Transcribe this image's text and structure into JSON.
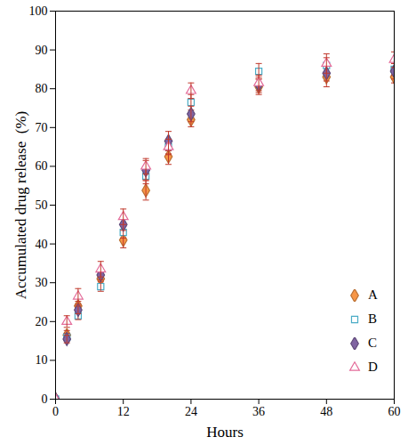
{
  "chart_data": {
    "type": "scatter",
    "x_label": "Hours",
    "y_label": "Accumulated drug release  (%)",
    "x": [
      0,
      2,
      4,
      8,
      12,
      16,
      20,
      24,
      36,
      48,
      60
    ],
    "xlim": [
      0,
      60
    ],
    "xticks": [
      0,
      12,
      24,
      36,
      48,
      60
    ],
    "ylim": [
      0,
      100
    ],
    "yticks": [
      0,
      10,
      20,
      30,
      40,
      50,
      60,
      70,
      80,
      90,
      100
    ],
    "legend": "lower right",
    "series": [
      {
        "name": "A",
        "color": "#f79646",
        "marker": "filled_diamond",
        "values": [
          0,
          16.5,
          24,
          31,
          41,
          53.8,
          62.5,
          72,
          80.5,
          83,
          83
        ],
        "errors": [
          0,
          1.2,
          1.2,
          1.5,
          2,
          2.5,
          2,
          1.8,
          2,
          2.5,
          1.5
        ]
      },
      {
        "name": "B",
        "color": "#4bacc6",
        "marker": "open_square",
        "values": [
          0,
          16,
          21.5,
          29,
          43,
          57.5,
          65,
          76.5,
          84.5,
          86,
          85
        ],
        "errors": [
          0,
          1,
          1,
          1.2,
          1.5,
          2,
          1.8,
          2,
          2,
          2,
          1.5
        ]
      },
      {
        "name": "C",
        "color": "#8064a2",
        "marker": "filled_diamond",
        "values": [
          0,
          15.5,
          23,
          32,
          45,
          59,
          66.5,
          73.5,
          81,
          84,
          84.5
        ],
        "errors": [
          0,
          1,
          1,
          1.3,
          1.5,
          2.5,
          2.5,
          2,
          2,
          2,
          2
        ]
      },
      {
        "name": "D",
        "color": "#e46c9a",
        "marker": "open_triangle",
        "values": [
          0,
          20,
          26.5,
          33.5,
          47,
          60,
          65,
          79.5,
          81.5,
          86.5,
          87.5
        ],
        "errors": [
          0,
          1.5,
          2,
          2,
          2,
          2,
          2,
          2,
          2,
          2.5,
          2
        ]
      }
    ]
  }
}
